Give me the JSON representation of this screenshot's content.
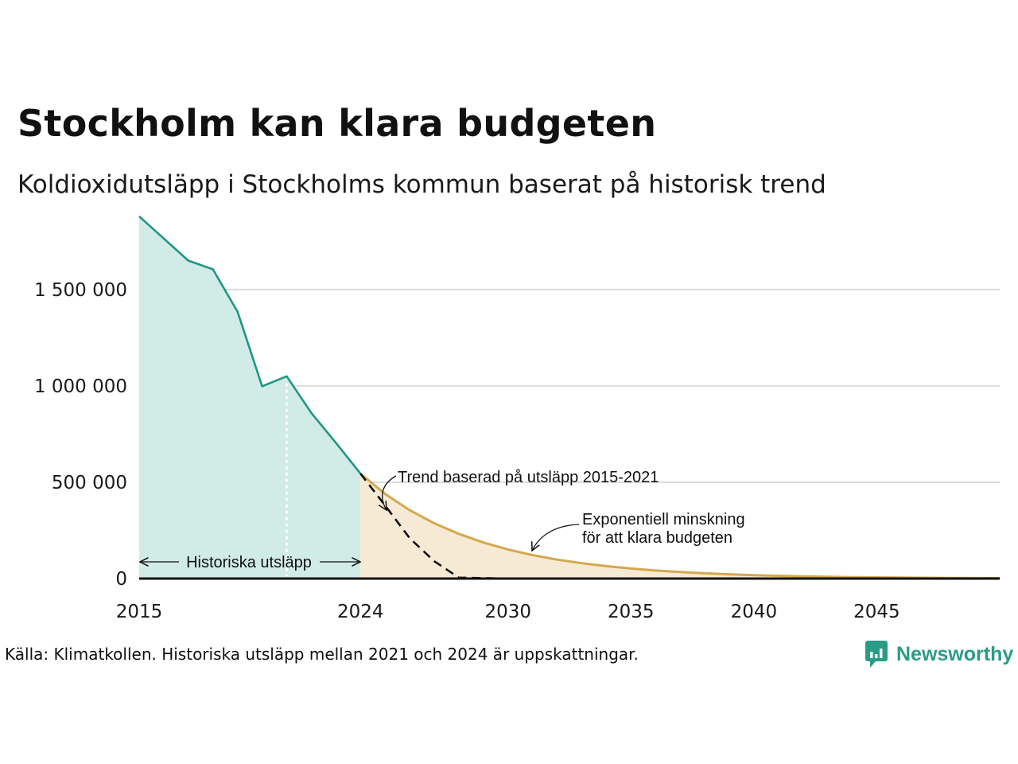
{
  "title": "Stockholm kan klara budgeten",
  "subtitle": "Koldioxidutsläpp i Stockholms kommun baserat på historisk trend",
  "source": "Källa: Klimatkollen. Historiska utsläpp mellan 2021 och 2024 är uppskattningar.",
  "brand": {
    "name": "Newsworthy",
    "icon": "newsworthy-logo-icon",
    "color": "#2a9c86"
  },
  "chart_data": {
    "type": "area",
    "xlim": [
      2015,
      2050
    ],
    "ylim": [
      0,
      1900000
    ],
    "yticks": [
      {
        "value": 0,
        "label": "0"
      },
      {
        "value": 500000,
        "label": "500 000"
      },
      {
        "value": 1000000,
        "label": "1 000 000"
      },
      {
        "value": 1500000,
        "label": "1 500 000"
      }
    ],
    "xticks": [
      {
        "value": 2015,
        "label": "2015"
      },
      {
        "value": 2024,
        "label": "2024"
      },
      {
        "value": 2030,
        "label": "2030"
      },
      {
        "value": 2035,
        "label": "2035"
      },
      {
        "value": 2040,
        "label": "2040"
      },
      {
        "value": 2045,
        "label": "2045"
      }
    ],
    "grid": true,
    "colors": {
      "historical_line": "#1f9683",
      "historical_fill": "#d1ebe6",
      "budget_line": "#d4a84f",
      "budget_fill": "#f7ead4",
      "trend_line": "#111111",
      "grid": "#dcdcdc"
    },
    "series": [
      {
        "values": [
          {
            "x": 2015,
            "y": 1880000
          },
          {
            "x": 2016,
            "y": 1765000
          },
          {
            "x": 2017,
            "y": 1650000
          },
          {
            "x": 2018,
            "y": 1605000
          },
          {
            "x": 2019,
            "y": 1385000
          },
          {
            "x": 2020,
            "y": 998000
          },
          {
            "x": 2021,
            "y": 1050000
          },
          {
            "x": 2022,
            "y": 860000
          },
          {
            "x": 2023,
            "y": 705000
          },
          {
            "x": 2024,
            "y": 545000
          }
        ]
      },
      {
        "values": [
          {
            "x": 2024,
            "y": 545000
          },
          {
            "x": 2025,
            "y": 440000
          },
          {
            "x": 2026,
            "y": 355000
          },
          {
            "x": 2027,
            "y": 287000
          },
          {
            "x": 2028,
            "y": 232000
          },
          {
            "x": 2029,
            "y": 187000
          },
          {
            "x": 2030,
            "y": 151000
          },
          {
            "x": 2031,
            "y": 122000
          },
          {
            "x": 2032,
            "y": 98500
          },
          {
            "x": 2033,
            "y": 79600
          },
          {
            "x": 2034,
            "y": 64300
          },
          {
            "x": 2035,
            "y": 51900
          },
          {
            "x": 2036,
            "y": 41900
          },
          {
            "x": 2037,
            "y": 33900
          },
          {
            "x": 2038,
            "y": 27400
          },
          {
            "x": 2039,
            "y": 22100
          },
          {
            "x": 2040,
            "y": 17900
          },
          {
            "x": 2041,
            "y": 14400
          },
          {
            "x": 2042,
            "y": 11700
          },
          {
            "x": 2043,
            "y": 9400
          },
          {
            "x": 2044,
            "y": 7600
          },
          {
            "x": 2045,
            "y": 6100
          },
          {
            "x": 2046,
            "y": 5000
          },
          {
            "x": 2047,
            "y": 4000
          },
          {
            "x": 2048,
            "y": 3200
          },
          {
            "x": 2049,
            "y": 2600
          },
          {
            "x": 2050,
            "y": 2100
          }
        ]
      },
      {
        "values": [
          {
            "x": 2024,
            "y": 545000
          },
          {
            "x": 2025,
            "y": 380000
          },
          {
            "x": 2026,
            "y": 210000
          },
          {
            "x": 2027,
            "y": 90000
          },
          {
            "x": 2028,
            "y": 5000
          },
          {
            "x": 2030,
            "y": 0
          },
          {
            "x": 2050,
            "y": 0
          }
        ]
      }
    ],
    "markers": [
      {
        "x": 2021
      }
    ],
    "annotations": {
      "historical": "Historiska utsläpp",
      "trend": "Trend baserad på utsläpp 2015-2021",
      "budget_line1": "Exponentiell minskning",
      "budget_line2": "för att klara budgeten"
    }
  }
}
